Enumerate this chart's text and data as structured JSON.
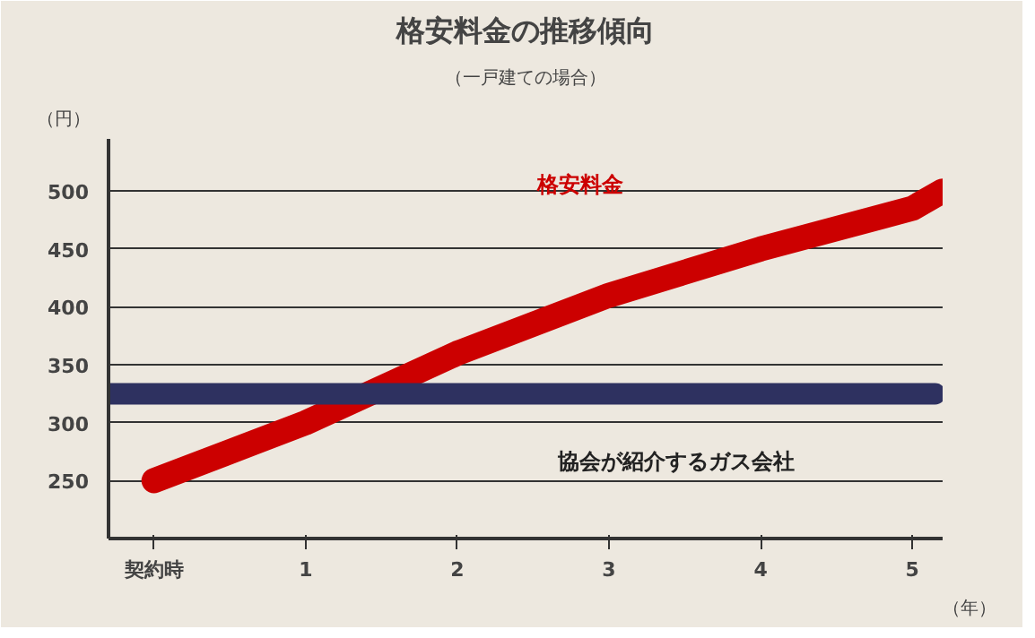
{
  "chart_data": {
    "type": "line",
    "title": "格安料金の推移傾向",
    "subtitle": "（一戸建ての場合）",
    "xlabel": "（年）",
    "ylabel": "（円）",
    "xlim": [
      -0.3,
      5.2
    ],
    "ylim": [
      200,
      545
    ],
    "xticks": [
      {
        "value": 0,
        "label": "契約時"
      },
      1,
      2,
      3,
      4,
      5
    ],
    "yticks": [
      {
        "value": 200,
        "label": null
      },
      250,
      300,
      350,
      400,
      450,
      500
    ],
    "grid": "y",
    "line_style": "solid",
    "series": [
      {
        "name": "格安料金",
        "color": "#cc0000",
        "x": [
          0,
          1,
          2,
          3,
          4,
          5,
          5.2
        ],
        "values": [
          250,
          300,
          360,
          410,
          450,
          485,
          500
        ]
      },
      {
        "name": "協会が紹介するガス会社",
        "color": "#2e3160",
        "x": [
          -0.3,
          5.15
        ],
        "values": [
          325,
          325
        ]
      }
    ]
  }
}
